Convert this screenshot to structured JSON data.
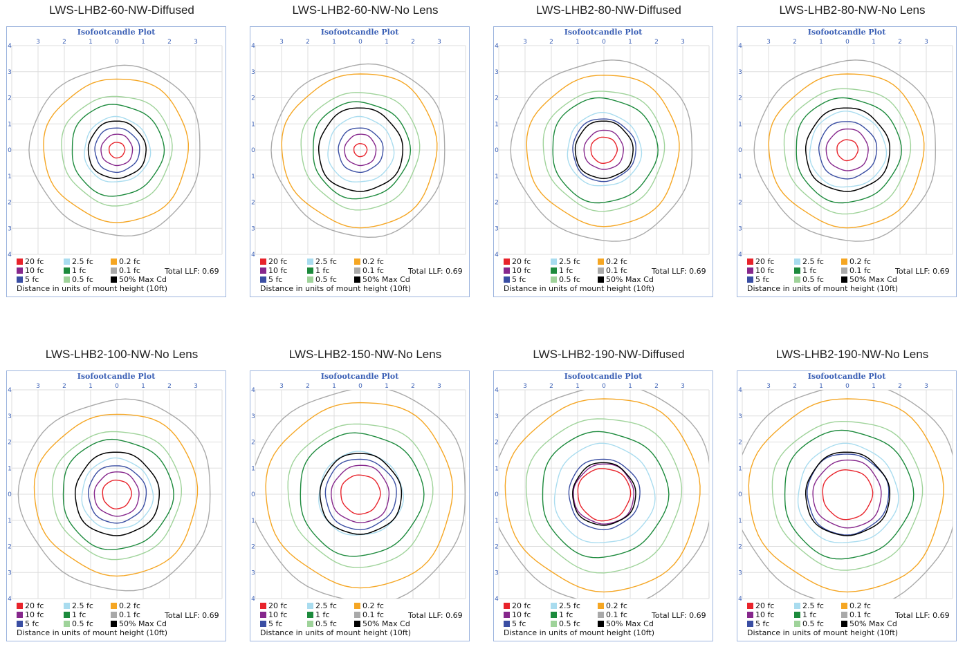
{
  "plot_title": "Isofootcandle Plot",
  "legend_items": [
    {
      "label": "20 fc",
      "color": "#e8232b"
    },
    {
      "label": "10 fc",
      "color": "#86278c"
    },
    {
      "label": "5 fc",
      "color": "#3a4ea3"
    },
    {
      "label": "2.5 fc",
      "color": "#a9dcef"
    },
    {
      "label": "1 fc",
      "color": "#1c8a3c"
    },
    {
      "label": "0.5 fc",
      "color": "#9fd39a"
    },
    {
      "label": "0.2 fc",
      "color": "#f5a623"
    },
    {
      "label": "0.1 fc",
      "color": "#a9a9a9"
    },
    {
      "label": "50% Max Cd",
      "color": "#000000"
    }
  ],
  "total_llf": "Total LLF: 0.69",
  "distance_note": "Distance in units of mount height (10ft)",
  "x_tick_labels": [
    "3",
    "2",
    "1",
    "0",
    "1",
    "2",
    "3"
  ],
  "y_tick_labels": [
    "4",
    "3",
    "2",
    "1",
    "0",
    "1",
    "2",
    "3",
    "4"
  ],
  "chart_data": [
    {
      "type": "isofootcandle",
      "title": "LWS-LHB2-60-NW-Diffused",
      "xlim": [
        -4,
        4
      ],
      "ylim": [
        -4,
        4
      ],
      "grid": true,
      "legend_position": "bottom",
      "contours": [
        {
          "level": "20 fc",
          "radius": 0.3
        },
        {
          "level": "10 fc",
          "radius": 0.6
        },
        {
          "level": "5 fc",
          "radius": 0.85
        },
        {
          "level": "2.5 fc",
          "radius": 1.25
        },
        {
          "level": "1 fc",
          "radius": 1.75
        },
        {
          "level": "0.5 fc",
          "radius": 2.1
        },
        {
          "level": "0.2 fc",
          "radius": 2.75
        },
        {
          "level": "0.1 fc",
          "radius": 3.25
        },
        {
          "level": "50% Max Cd",
          "radius": 1.1
        }
      ]
    },
    {
      "type": "isofootcandle",
      "title": "LWS-LHB2-60-NW-No Lens",
      "xlim": [
        -4,
        4
      ],
      "ylim": [
        -4,
        4
      ],
      "grid": true,
      "legend_position": "bottom",
      "contours": [
        {
          "level": "20 fc",
          "radius": 0.25
        },
        {
          "level": "10 fc",
          "radius": 0.6
        },
        {
          "level": "5 fc",
          "radius": 0.85
        },
        {
          "level": "2.5 fc",
          "radius": 1.25
        },
        {
          "level": "1 fc",
          "radius": 1.85
        },
        {
          "level": "0.5 fc",
          "radius": 2.25
        },
        {
          "level": "0.2 fc",
          "radius": 2.95
        },
        {
          "level": "0.1 fc",
          "radius": 3.3
        },
        {
          "level": "50% Max Cd",
          "radius": 1.6
        }
      ]
    },
    {
      "type": "isofootcandle",
      "title": "LWS-LHB2-80-NW-Diffused",
      "xlim": [
        -4,
        4
      ],
      "ylim": [
        -4,
        4
      ],
      "grid": true,
      "legend_position": "bottom",
      "contours": [
        {
          "level": "20 fc",
          "radius": 0.5
        },
        {
          "level": "10 fc",
          "radius": 0.75
        },
        {
          "level": "5 fc",
          "radius": 1.2
        },
        {
          "level": "2.5 fc",
          "radius": 1.4
        },
        {
          "level": "1 fc",
          "radius": 2.0
        },
        {
          "level": "0.5 fc",
          "radius": 2.3
        },
        {
          "level": "0.2 fc",
          "radius": 2.9
        },
        {
          "level": "0.1 fc",
          "radius": 3.45
        },
        {
          "level": "50% Max Cd",
          "radius": 1.1
        }
      ]
    },
    {
      "type": "isofootcandle",
      "title": "LWS-LHB2-80-NW-No Lens",
      "xlim": [
        -4,
        4
      ],
      "ylim": [
        -4,
        4
      ],
      "grid": true,
      "legend_position": "bottom",
      "contours": [
        {
          "level": "20 fc",
          "radius": 0.4
        },
        {
          "level": "10 fc",
          "radius": 0.8
        },
        {
          "level": "5 fc",
          "radius": 1.1
        },
        {
          "level": "2.5 fc",
          "radius": 1.45
        },
        {
          "level": "1 fc",
          "radius": 2.0
        },
        {
          "level": "0.5 fc",
          "radius": 2.4
        },
        {
          "level": "0.2 fc",
          "radius": 2.95
        },
        {
          "level": "0.1 fc",
          "radius": 3.45
        },
        {
          "level": "50% Max Cd",
          "radius": 1.6
        }
      ]
    },
    {
      "type": "isofootcandle",
      "title": "LWS-LHB2-100-NW-No Lens",
      "xlim": [
        -4,
        4
      ],
      "ylim": [
        -4,
        4
      ],
      "grid": true,
      "legend_position": "bottom",
      "contours": [
        {
          "level": "20 fc",
          "radius": 0.55
        },
        {
          "level": "10 fc",
          "radius": 0.85
        },
        {
          "level": "5 fc",
          "radius": 1.1
        },
        {
          "level": "2.5 fc",
          "radius": 1.35
        },
        {
          "level": "1 fc",
          "radius": 2.1
        },
        {
          "level": "0.5 fc",
          "radius": 2.45
        },
        {
          "level": "0.2 fc",
          "radius": 3.1
        },
        {
          "level": "0.1 fc",
          "radius": 3.65
        },
        {
          "level": "50% Max Cd",
          "radius": 1.6
        }
      ]
    },
    {
      "type": "isofootcandle",
      "title": "LWS-LHB2-150-NW-No Lens",
      "xlim": [
        -4,
        4
      ],
      "ylim": [
        -4,
        4
      ],
      "grid": true,
      "legend_position": "bottom",
      "contours": [
        {
          "level": "20 fc",
          "radius": 0.75
        },
        {
          "level": "10 fc",
          "radius": 1.1
        },
        {
          "level": "5 fc",
          "radius": 1.35
        },
        {
          "level": "2.5 fc",
          "radius": 1.6
        },
        {
          "level": "1 fc",
          "radius": 2.35
        },
        {
          "level": "0.5 fc",
          "radius": 2.75
        },
        {
          "level": "0.2 fc",
          "radius": 3.55
        },
        {
          "level": "0.1 fc",
          "radius": 4.1
        },
        {
          "level": "50% Max Cd",
          "radius": 1.55
        }
      ]
    },
    {
      "type": "isofootcandle",
      "title": "LWS-LHB2-190-NW-Diffused",
      "xlim": [
        -4,
        4
      ],
      "ylim": [
        -4,
        4
      ],
      "grid": true,
      "legend_position": "bottom",
      "contours": [
        {
          "level": "20 fc",
          "radius": 1.0
        },
        {
          "level": "10 fc",
          "radius": 1.15
        },
        {
          "level": "5 fc",
          "radius": 1.35
        },
        {
          "level": "2.5 fc",
          "radius": 1.9
        },
        {
          "level": "1 fc",
          "radius": 2.4
        },
        {
          "level": "0.5 fc",
          "radius": 2.95
        },
        {
          "level": "0.2 fc",
          "radius": 3.7
        },
        {
          "level": "0.1 fc",
          "radius": 4.2
        },
        {
          "level": "50% Max Cd",
          "radius": 1.2
        }
      ]
    },
    {
      "type": "isofootcandle",
      "title": "LWS-LHB2-190-NW-No Lens",
      "xlim": [
        -4,
        4
      ],
      "ylim": [
        -4,
        4
      ],
      "grid": true,
      "legend_position": "bottom",
      "contours": [
        {
          "level": "20 fc",
          "radius": 0.95
        },
        {
          "level": "10 fc",
          "radius": 1.3
        },
        {
          "level": "5 fc",
          "radius": 1.55
        },
        {
          "level": "2.5 fc",
          "radius": 1.9
        },
        {
          "level": "1 fc",
          "radius": 2.45
        },
        {
          "level": "0.5 fc",
          "radius": 2.85
        },
        {
          "level": "0.2 fc",
          "radius": 3.7
        },
        {
          "level": "0.1 fc",
          "radius": 4.25
        },
        {
          "level": "50% Max Cd",
          "radius": 1.6
        }
      ]
    }
  ]
}
